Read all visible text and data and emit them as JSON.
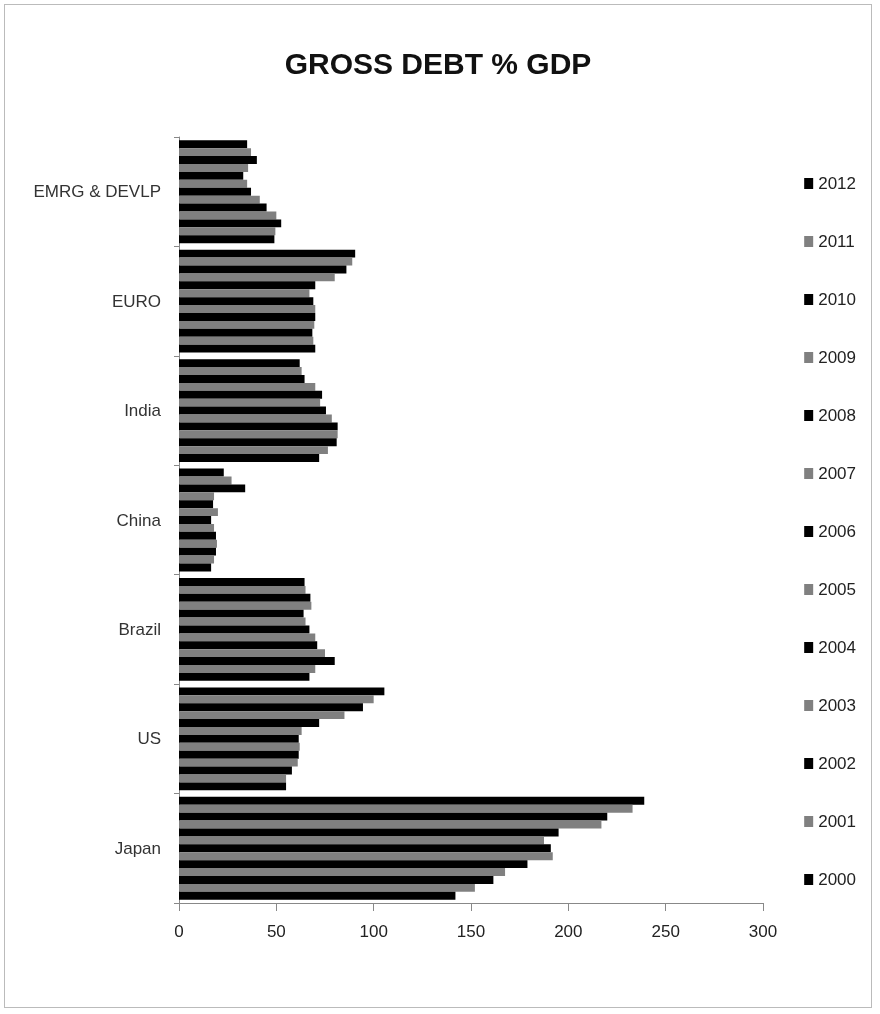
{
  "chart_data": {
    "type": "bar",
    "orientation": "horizontal",
    "title": "GROSS DEBT % GDP",
    "categories": [
      "EMRG & DEVLP",
      "EURO",
      "India",
      "China",
      "Brazil",
      "US",
      "Japan"
    ],
    "series": [
      {
        "name": "2012",
        "color": "#000000",
        "values": [
          35,
          90.5,
          62,
          23,
          64.5,
          105.5,
          239
        ]
      },
      {
        "name": "2011",
        "color": "#808080",
        "values": [
          37,
          89,
          63,
          27,
          65,
          100,
          233
        ]
      },
      {
        "name": "2010",
        "color": "#000000",
        "values": [
          40,
          86,
          64.5,
          34,
          67.5,
          94.5,
          220
        ]
      },
      {
        "name": "2009",
        "color": "#808080",
        "values": [
          35.5,
          80,
          70,
          18,
          68,
          85,
          217
        ]
      },
      {
        "name": "2008",
        "color": "#000000",
        "values": [
          33,
          70,
          73.5,
          17.5,
          64,
          72,
          195
        ]
      },
      {
        "name": "2007",
        "color": "#808080",
        "values": [
          35,
          67,
          72.5,
          20,
          65,
          63,
          187.5
        ]
      },
      {
        "name": "2006",
        "color": "#000000",
        "values": [
          37,
          69,
          75.5,
          16.5,
          67,
          61.5,
          191
        ]
      },
      {
        "name": "2005",
        "color": "#808080",
        "values": [
          41.5,
          70,
          78.5,
          18,
          70,
          62,
          192
        ]
      },
      {
        "name": "2004",
        "color": "#000000",
        "values": [
          45,
          70,
          81.5,
          19,
          71,
          61.5,
          179
        ]
      },
      {
        "name": "2003",
        "color": "#808080",
        "values": [
          50,
          69.5,
          81.5,
          19.5,
          75,
          61,
          167.5
        ]
      },
      {
        "name": "2002",
        "color": "#000000",
        "values": [
          52.5,
          68.5,
          81,
          19,
          80,
          58,
          161.5
        ]
      },
      {
        "name": "2001",
        "color": "#808080",
        "values": [
          49.5,
          69,
          76.5,
          18,
          70,
          55,
          152
        ]
      },
      {
        "name": "2000",
        "color": "#000000",
        "values": [
          49,
          70,
          72,
          16.5,
          67,
          55,
          142
        ]
      }
    ],
    "xlim": [
      0,
      300
    ],
    "xticks": [
      0,
      50,
      100,
      150,
      200,
      250,
      300
    ],
    "grid": false,
    "legend": "right"
  }
}
